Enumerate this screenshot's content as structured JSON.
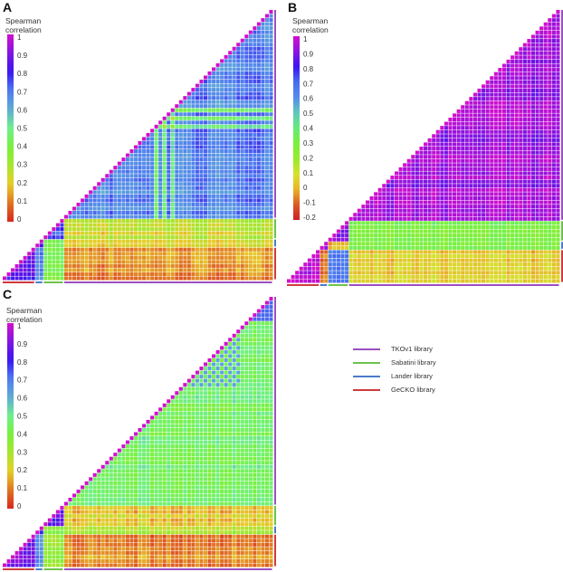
{
  "legend": [
    {
      "label": "TKOv1 library",
      "color": "#9b4fc0"
    },
    {
      "label": "Sabatini library",
      "color": "#6cc24a"
    },
    {
      "label": "Lander library",
      "color": "#4a7cc8"
    },
    {
      "label": "GeCKO library",
      "color": "#d03a3a"
    }
  ],
  "chart_data": [
    {
      "panel": "A",
      "type": "heatmap",
      "colorbar_title": "Spearman correlation",
      "colorbar_ticks": [
        "1",
        "0.9",
        "0.8",
        "0.7",
        "0.6",
        "0.5",
        "0.4",
        "0.3",
        "0.2",
        "0.1",
        "0"
      ],
      "range": [
        0,
        1
      ],
      "groups": [
        {
          "name": "GeCKO library",
          "n": 8
        },
        {
          "name": "Lander library",
          "n": 2
        },
        {
          "name": "Sabatini library",
          "n": 5
        },
        {
          "name": "TKOv1 library",
          "n": 51
        }
      ],
      "block_means": {
        "GG": 0.85,
        "GL": 0.7,
        "GS": 0.4,
        "GT": 0.13,
        "LL": 0.8,
        "LS": 0.4,
        "LT": 0.2,
        "SS": 0.72,
        "ST": 0.25,
        "TT": 0.68
      }
    },
    {
      "panel": "B",
      "type": "heatmap",
      "colorbar_title": "Spearman correlation",
      "colorbar_ticks": [
        "1",
        "0.9",
        "0.8",
        "0.7",
        "0.6",
        "0.5",
        "0.4",
        "0.3",
        "0.2",
        "0.1",
        "0",
        "-0.1",
        "-0.2"
      ],
      "range": [
        -0.2,
        1
      ],
      "groups": [
        {
          "name": "GeCKO library",
          "n": 8
        },
        {
          "name": "Lander library",
          "n": 2
        },
        {
          "name": "Sabatini library",
          "n": 5
        },
        {
          "name": "TKOv1 library",
          "n": 51
        }
      ],
      "block_means": {
        "GG": 0.97,
        "GL": -0.08,
        "GS": 0.65,
        "GT": 0.05,
        "LL": 0.85,
        "LS": 0.0,
        "LT": 0.3,
        "SS": 0.88,
        "ST": 0.3,
        "TT": 0.92
      }
    },
    {
      "panel": "C",
      "type": "heatmap",
      "colorbar_title": "Spearman correlation",
      "colorbar_ticks": [
        "1",
        "0.9",
        "0.8",
        "0.7",
        "0.6",
        "0.5",
        "0.4",
        "0.3",
        "0.2",
        "0.1",
        "0"
      ],
      "range": [
        0,
        1
      ],
      "groups": [
        {
          "name": "GeCKO library",
          "n": 8
        },
        {
          "name": "Lander library",
          "n": 2
        },
        {
          "name": "Sabatini library",
          "n": 5
        },
        {
          "name": "TKOv1 library",
          "n": 51
        }
      ],
      "block_means": {
        "GG": 0.88,
        "GL": 0.65,
        "GS": 0.35,
        "GT": 0.12,
        "LL": 0.8,
        "LS": 0.4,
        "LT": 0.3,
        "SS": 0.85,
        "ST": 0.2,
        "TT": 0.45
      }
    }
  ]
}
